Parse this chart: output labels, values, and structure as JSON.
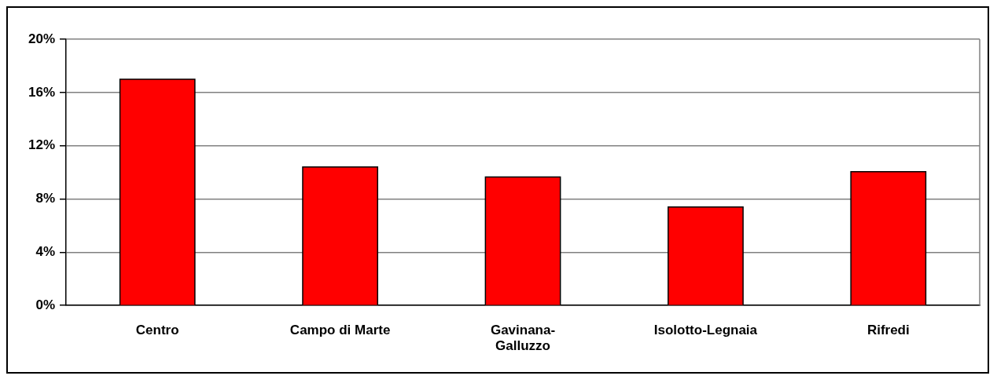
{
  "chart_data": {
    "type": "bar",
    "categories": [
      "Centro",
      "Campo di Marte",
      "Gavinana-Galluzzo",
      "Isolotto-Legnaia",
      "Rifredi"
    ],
    "values": [
      17.0,
      10.4,
      9.65,
      7.4,
      10.05
    ],
    "color": "#ff0000",
    "ylim": [
      0,
      20
    ],
    "yticks": [
      {
        "value": 0,
        "label": "0%"
      },
      {
        "value": 4,
        "label": "4%"
      },
      {
        "value": 8,
        "label": "8%"
      },
      {
        "value": 12,
        "label": "12%"
      },
      {
        "value": 16,
        "label": "16%"
      },
      {
        "value": 20,
        "label": "20%"
      }
    ],
    "grid": "y",
    "legend": false
  }
}
